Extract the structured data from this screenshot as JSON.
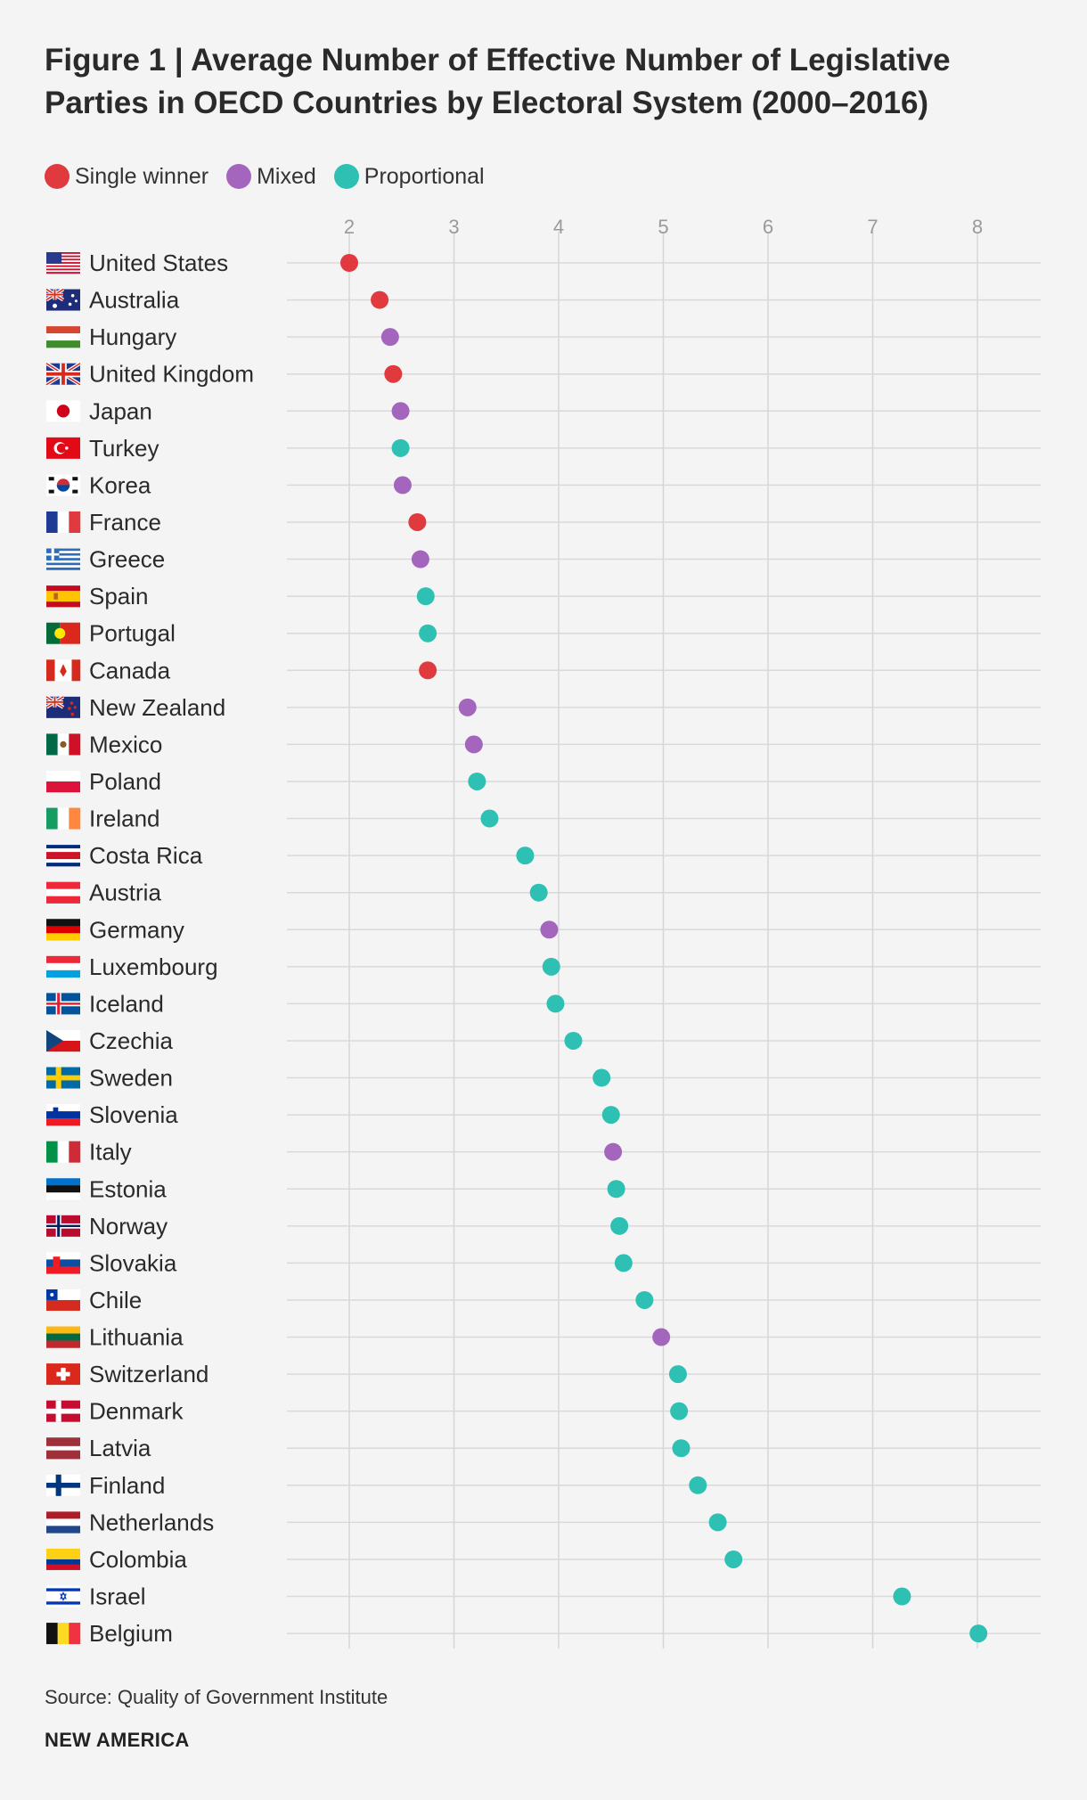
{
  "title": "Figure 1 | Average Number of Effective Number of Legislative Parties in OECD Countries by Electoral System (2000–2016)",
  "legend": [
    {
      "key": "single",
      "label": "Single winner",
      "color": "#e0393e"
    },
    {
      "key": "mixed",
      "label": "Mixed",
      "color": "#a466bd"
    },
    {
      "key": "proportional",
      "label": "Proportional",
      "color": "#2ec0b3"
    }
  ],
  "source": "Source: Quality of Government Institute",
  "brand": "NEW AMERICA",
  "chart_data": {
    "type": "scatter",
    "orientation": "horizontal dot plot",
    "xlim": [
      1.4,
      8.6
    ],
    "xticks": [
      2,
      3,
      4,
      5,
      6,
      7,
      8
    ],
    "grid": true,
    "xlabel": "",
    "ylabel": "",
    "points": [
      {
        "country": "United States",
        "value": 2.0,
        "system": "single",
        "flag": "us"
      },
      {
        "country": "Australia",
        "value": 2.29,
        "system": "single",
        "flag": "au"
      },
      {
        "country": "Hungary",
        "value": 2.39,
        "system": "mixed",
        "flag": "hu"
      },
      {
        "country": "United Kingdom",
        "value": 2.42,
        "system": "single",
        "flag": "gb"
      },
      {
        "country": "Japan",
        "value": 2.49,
        "system": "mixed",
        "flag": "jp"
      },
      {
        "country": "Turkey",
        "value": 2.49,
        "system": "proportional",
        "flag": "tr"
      },
      {
        "country": "Korea",
        "value": 2.51,
        "system": "mixed",
        "flag": "kr"
      },
      {
        "country": "France",
        "value": 2.65,
        "system": "single",
        "flag": "fr"
      },
      {
        "country": "Greece",
        "value": 2.68,
        "system": "mixed",
        "flag": "gr"
      },
      {
        "country": "Spain",
        "value": 2.73,
        "system": "proportional",
        "flag": "es"
      },
      {
        "country": "Portugal",
        "value": 2.75,
        "system": "proportional",
        "flag": "pt"
      },
      {
        "country": "Canada",
        "value": 2.75,
        "system": "single",
        "flag": "ca"
      },
      {
        "country": "New Zealand",
        "value": 3.13,
        "system": "mixed",
        "flag": "nz"
      },
      {
        "country": "Mexico",
        "value": 3.19,
        "system": "mixed",
        "flag": "mx"
      },
      {
        "country": "Poland",
        "value": 3.22,
        "system": "proportional",
        "flag": "pl"
      },
      {
        "country": "Ireland",
        "value": 3.34,
        "system": "proportional",
        "flag": "ie"
      },
      {
        "country": "Costa Rica",
        "value": 3.68,
        "system": "proportional",
        "flag": "cr"
      },
      {
        "country": "Austria",
        "value": 3.81,
        "system": "proportional",
        "flag": "at"
      },
      {
        "country": "Germany",
        "value": 3.91,
        "system": "mixed",
        "flag": "de"
      },
      {
        "country": "Luxembourg",
        "value": 3.93,
        "system": "proportional",
        "flag": "lu"
      },
      {
        "country": "Iceland",
        "value": 3.97,
        "system": "proportional",
        "flag": "is"
      },
      {
        "country": "Czechia",
        "value": 4.14,
        "system": "proportional",
        "flag": "cz"
      },
      {
        "country": "Sweden",
        "value": 4.41,
        "system": "proportional",
        "flag": "se"
      },
      {
        "country": "Slovenia",
        "value": 4.5,
        "system": "proportional",
        "flag": "si"
      },
      {
        "country": "Italy",
        "value": 4.52,
        "system": "mixed",
        "flag": "it"
      },
      {
        "country": "Estonia",
        "value": 4.55,
        "system": "proportional",
        "flag": "ee"
      },
      {
        "country": "Norway",
        "value": 4.58,
        "system": "proportional",
        "flag": "no"
      },
      {
        "country": "Slovakia",
        "value": 4.62,
        "system": "proportional",
        "flag": "sk"
      },
      {
        "country": "Chile",
        "value": 4.82,
        "system": "proportional",
        "flag": "cl"
      },
      {
        "country": "Lithuania",
        "value": 4.98,
        "system": "mixed",
        "flag": "lt"
      },
      {
        "country": "Switzerland",
        "value": 5.14,
        "system": "proportional",
        "flag": "ch"
      },
      {
        "country": "Denmark",
        "value": 5.15,
        "system": "proportional",
        "flag": "dk"
      },
      {
        "country": "Latvia",
        "value": 5.17,
        "system": "proportional",
        "flag": "lv"
      },
      {
        "country": "Finland",
        "value": 5.33,
        "system": "proportional",
        "flag": "fi"
      },
      {
        "country": "Netherlands",
        "value": 5.52,
        "system": "proportional",
        "flag": "nl"
      },
      {
        "country": "Colombia",
        "value": 5.67,
        "system": "proportional",
        "flag": "co"
      },
      {
        "country": "Israel",
        "value": 7.28,
        "system": "proportional",
        "flag": "il"
      },
      {
        "country": "Belgium",
        "value": 8.01,
        "system": "proportional",
        "flag": "be"
      }
    ]
  }
}
